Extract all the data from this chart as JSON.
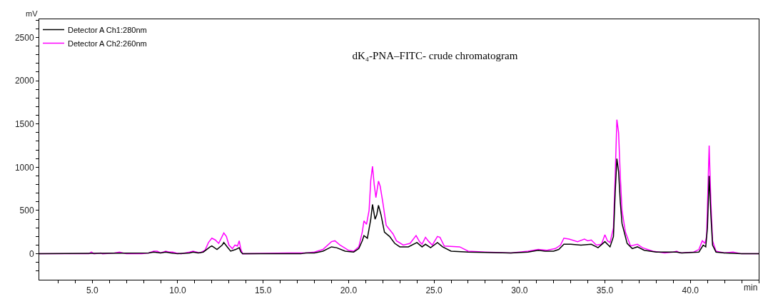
{
  "chart_data": {
    "type": "line",
    "title": "dK₄-PNA–FITC- crude chromatogram",
    "xlabel": "min",
    "ylabel": "mV",
    "xlim": [
      1.9,
      44.0
    ],
    "ylim": [
      -300,
      2710
    ],
    "xticks": [
      {
        "value": 3,
        "label": null
      },
      {
        "value": 4,
        "label": null
      },
      {
        "value": 5,
        "label": "5.0"
      },
      {
        "value": 6,
        "label": null
      },
      {
        "value": 7,
        "label": null
      },
      {
        "value": 8,
        "label": null
      },
      {
        "value": 9,
        "label": null
      },
      {
        "value": 10,
        "label": "10.0"
      },
      {
        "value": 11,
        "label": null
      },
      {
        "value": 12,
        "label": null
      },
      {
        "value": 13,
        "label": null
      },
      {
        "value": 14,
        "label": null
      },
      {
        "value": 15,
        "label": "15.0"
      },
      {
        "value": 16,
        "label": null
      },
      {
        "value": 17,
        "label": null
      },
      {
        "value": 18,
        "label": null
      },
      {
        "value": 19,
        "label": null
      },
      {
        "value": 20,
        "label": "20.0"
      },
      {
        "value": 21,
        "label": null
      },
      {
        "value": 22,
        "label": null
      },
      {
        "value": 23,
        "label": null
      },
      {
        "value": 24,
        "label": null
      },
      {
        "value": 25,
        "label": "25.0"
      },
      {
        "value": 26,
        "label": null
      },
      {
        "value": 27,
        "label": null
      },
      {
        "value": 28,
        "label": null
      },
      {
        "value": 29,
        "label": null
      },
      {
        "value": 30,
        "label": "30.0"
      },
      {
        "value": 31,
        "label": null
      },
      {
        "value": 32,
        "label": null
      },
      {
        "value": 33,
        "label": null
      },
      {
        "value": 34,
        "label": null
      },
      {
        "value": 35,
        "label": "35.0"
      },
      {
        "value": 36,
        "label": null
      },
      {
        "value": 37,
        "label": null
      },
      {
        "value": 38,
        "label": null
      },
      {
        "value": 39,
        "label": null
      },
      {
        "value": 40,
        "label": "40.0"
      },
      {
        "value": 41,
        "label": null
      },
      {
        "value": 42,
        "label": null
      },
      {
        "value": 43,
        "label": null
      },
      {
        "value": 44,
        "label": null
      }
    ],
    "yticks": [
      {
        "value": -200,
        "label": null
      },
      {
        "value": -100,
        "label": null
      },
      0,
      {
        "value": 100,
        "label": null
      },
      {
        "value": 200,
        "label": null
      },
      {
        "value": 300,
        "label": null
      },
      {
        "value": 400,
        "label": null
      },
      500,
      {
        "value": 600,
        "label": null
      },
      {
        "value": 700,
        "label": null
      },
      {
        "value": 800,
        "label": null
      },
      {
        "value": 900,
        "label": null
      },
      1000,
      {
        "value": 1100,
        "label": null
      },
      {
        "value": 1200,
        "label": null
      },
      {
        "value": 1300,
        "label": null
      },
      {
        "value": 1400,
        "label": null
      },
      1500,
      {
        "value": 1600,
        "label": null
      },
      {
        "value": 1700,
        "label": null
      },
      {
        "value": 1800,
        "label": null
      },
      {
        "value": 1900,
        "label": null
      },
      2000,
      {
        "value": 2100,
        "label": null
      },
      {
        "value": 2200,
        "label": null
      },
      {
        "value": 2300,
        "label": null
      },
      {
        "value": 2400,
        "label": null
      },
      2500,
      {
        "value": 2600,
        "label": null
      },
      {
        "value": 2700,
        "label": null
      }
    ],
    "legend": "top left",
    "marker": "none",
    "line_style": "solid",
    "series": [
      {
        "name": "Detector A Ch1:280nm",
        "color": "#000000",
        "x": [
          1.9,
          8.3,
          8.6,
          9.0,
          9.3,
          9.6,
          10.0,
          10.7,
          10.9,
          11.2,
          11.5,
          11.9,
          12.0,
          12.3,
          12.6,
          12.7,
          12.9,
          13.1,
          13.4,
          13.6,
          13.7,
          13.8,
          17.2,
          17.5,
          18.0,
          18.5,
          19.0,
          19.3,
          19.8,
          20.3,
          20.6,
          20.8,
          20.9,
          21.1,
          21.3,
          21.4,
          21.55,
          21.65,
          21.75,
          21.9,
          22.1,
          22.4,
          22.7,
          23.0,
          23.5,
          24.0,
          24.3,
          24.5,
          24.8,
          25.2,
          25.5,
          26.0,
          27.0,
          29.5,
          30.5,
          31.1,
          31.5,
          32.0,
          32.3,
          32.6,
          33.0,
          33.6,
          34.2,
          34.6,
          35.0,
          35.3,
          35.5,
          35.6,
          35.7,
          35.8,
          35.9,
          36.0,
          36.3,
          36.6,
          36.9,
          37.3,
          38.0,
          39.2,
          39.5,
          40.5,
          40.75,
          40.9,
          41.0,
          41.1,
          41.2,
          41.3,
          41.5,
          42.0,
          43.0,
          44.0
        ],
        "values": [
          0,
          10,
          20,
          10,
          20,
          10,
          0,
          10,
          20,
          10,
          20,
          80,
          90,
          50,
          100,
          130,
          80,
          30,
          50,
          70,
          20,
          0,
          0,
          10,
          10,
          30,
          80,
          70,
          30,
          20,
          60,
          150,
          210,
          180,
          400,
          570,
          400,
          450,
          560,
          450,
          250,
          200,
          120,
          80,
          80,
          130,
          80,
          110,
          70,
          130,
          80,
          30,
          20,
          10,
          20,
          40,
          30,
          30,
          50,
          110,
          110,
          100,
          110,
          70,
          140,
          80,
          200,
          700,
          1100,
          950,
          600,
          350,
          120,
          60,
          80,
          40,
          20,
          20,
          10,
          20,
          100,
          80,
          300,
          900,
          450,
          100,
          20,
          10,
          0,
          0
        ]
      },
      {
        "name": "Detector A Ch2:260nm",
        "color": "#ff00ff",
        "x": [
          1.9,
          4.8,
          4.95,
          5.1,
          5.5,
          5.6,
          6.3,
          6.6,
          6.8,
          7.0,
          7.9,
          8.3,
          8.6,
          8.8,
          9.0,
          9.3,
          9.5,
          9.7,
          9.9,
          10.2,
          10.7,
          10.9,
          11.1,
          11.3,
          11.6,
          11.8,
          12.0,
          12.2,
          12.4,
          12.6,
          12.7,
          12.85,
          13.0,
          13.2,
          13.35,
          13.5,
          13.6,
          13.7,
          13.8,
          16.5,
          17.5,
          18.0,
          18.5,
          19.0,
          19.2,
          19.5,
          20.0,
          20.3,
          20.6,
          20.8,
          20.9,
          21.05,
          21.2,
          21.3,
          21.4,
          21.5,
          21.6,
          21.75,
          21.85,
          22.0,
          22.2,
          22.4,
          22.6,
          22.8,
          23.2,
          23.6,
          23.95,
          24.15,
          24.3,
          24.5,
          24.7,
          24.9,
          25.2,
          25.35,
          25.6,
          26.5,
          27.0,
          28.0,
          29.5,
          30.5,
          31.1,
          31.6,
          32.1,
          32.4,
          32.6,
          32.9,
          33.4,
          33.8,
          34.0,
          34.2,
          34.5,
          34.8,
          35.0,
          35.15,
          35.3,
          35.5,
          35.6,
          35.7,
          35.8,
          35.9,
          36.0,
          36.2,
          36.5,
          36.9,
          37.2,
          37.8,
          38.5,
          39.0,
          39.2,
          39.4,
          40.2,
          40.5,
          40.7,
          40.85,
          40.95,
          41.1,
          41.2,
          41.3,
          41.5,
          42.0,
          42.5,
          43.0,
          44.0
        ],
        "values": [
          0,
          0,
          20,
          0,
          10,
          0,
          10,
          20,
          10,
          0,
          0,
          10,
          30,
          30,
          10,
          30,
          20,
          20,
          10,
          0,
          20,
          30,
          20,
          10,
          40,
          130,
          180,
          160,
          120,
          200,
          240,
          200,
          100,
          60,
          100,
          90,
          150,
          50,
          0,
          10,
          10,
          20,
          50,
          140,
          150,
          100,
          40,
          30,
          80,
          250,
          380,
          340,
          500,
          850,
          1010,
          800,
          650,
          840,
          780,
          600,
          330,
          280,
          230,
          150,
          100,
          120,
          210,
          140,
          110,
          190,
          140,
          100,
          200,
          190,
          90,
          80,
          30,
          20,
          10,
          30,
          50,
          40,
          60,
          100,
          180,
          170,
          140,
          170,
          150,
          160,
          100,
          110,
          220,
          150,
          130,
          300,
          900,
          1550,
          1400,
          900,
          500,
          250,
          90,
          110,
          70,
          30,
          10,
          20,
          30,
          10,
          20,
          50,
          150,
          120,
          200,
          1250,
          600,
          150,
          30,
          10,
          20,
          0,
          0
        ]
      }
    ]
  }
}
